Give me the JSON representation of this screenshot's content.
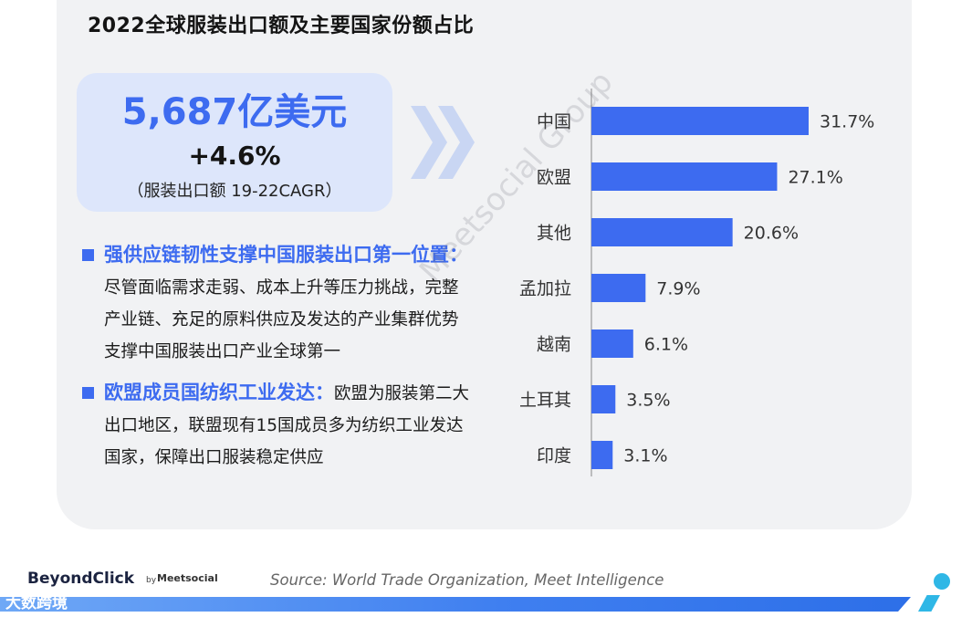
{
  "title": "2022全球服装出口额及主要国家份额占比",
  "hero": {
    "total": "5,687亿美元",
    "growth": "+4.6%",
    "note": "（服装出口额 19-22CAGR）"
  },
  "points": [
    {
      "head": "强供应链韧性支撑中国服装出口第一位置：",
      "body": "尽管面临需求走弱、成本上升等压力挑战，完整产业链、充足的原料供应及发达的产业集群优势支撑中国服装出口产业全球第一"
    },
    {
      "head": "欧盟成员国纺织工业发达：",
      "body": "欧盟为服装第二大出口地区，联盟现有15国成员多为纺织工业发达国家，保障出口服装稳定供应"
    }
  ],
  "chart_data": {
    "type": "bar",
    "orientation": "horizontal",
    "categories": [
      "中国",
      "欧盟",
      "其他",
      "孟加拉",
      "越南",
      "土耳其",
      "印度"
    ],
    "values": [
      31.7,
      27.1,
      20.6,
      7.9,
      6.1,
      3.5,
      3.1
    ],
    "value_labels": [
      "31.7%",
      "27.1%",
      "20.6%",
      "7.9%",
      "6.1%",
      "3.5%",
      "3.1%"
    ],
    "unit": "%",
    "bar_color": "#3d6bf0",
    "xlim": [
      0,
      35
    ],
    "grid": false,
    "legend": "none"
  },
  "watermark": "Meetsocial Group",
  "footer": {
    "logo": "BeyondClick",
    "by": "by",
    "partner": "Meetsocial",
    "source": "Source: World Trade  Organization, Meet Intelligence",
    "corner_mark": "大数跨境"
  },
  "colors": {
    "accent": "#3d6bf0",
    "card_bg": "#f1f2f4",
    "hero_bg": "#dde6fb",
    "teal": "#2fb7e6"
  }
}
